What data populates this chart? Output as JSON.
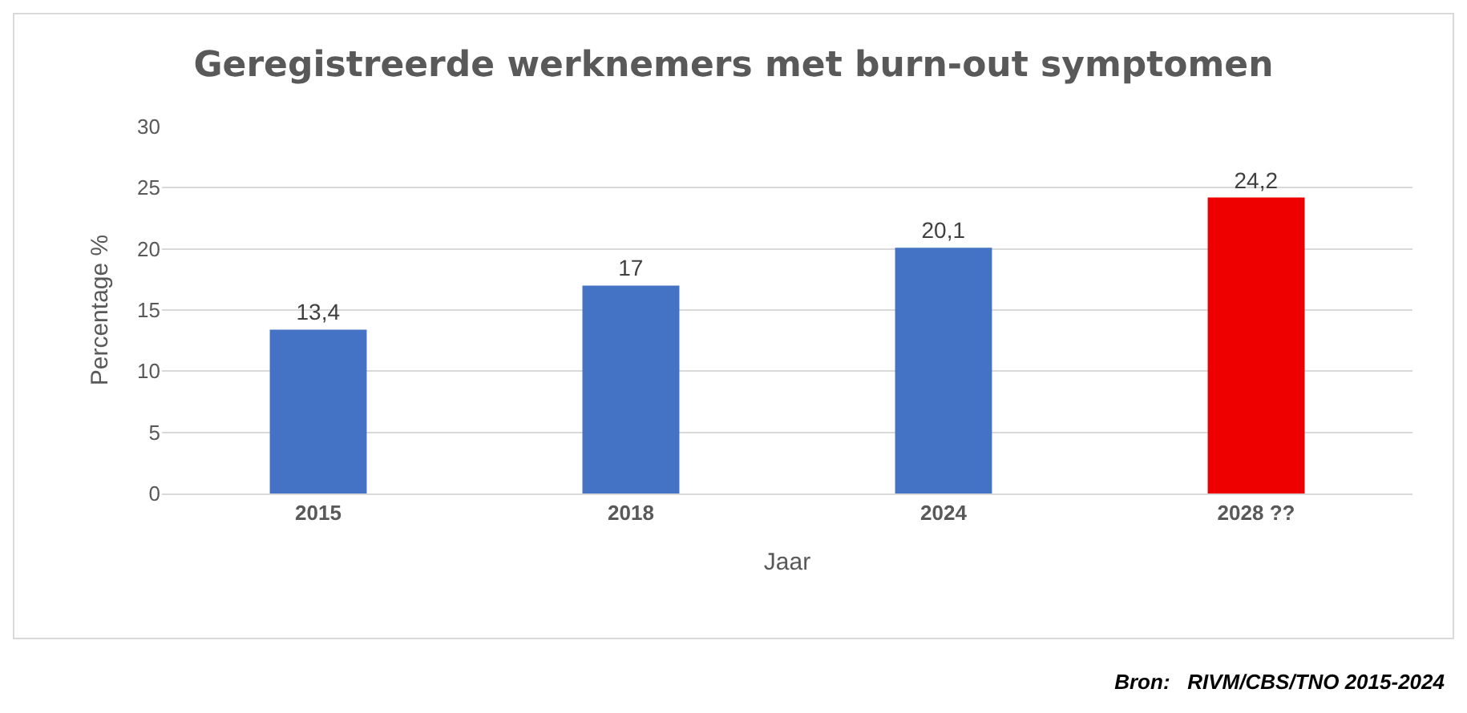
{
  "chart_data": {
    "type": "bar",
    "title": "Geregistreerde werknemers met burn-out symptomen",
    "xlabel": "Jaar",
    "ylabel": "Percentage %",
    "categories": [
      "2015",
      "2018",
      "2024",
      "2028 ??"
    ],
    "values": [
      13.4,
      17,
      20.1,
      24.2
    ],
    "colors": [
      "#4472c4",
      "#4472c4",
      "#4472c4",
      "#ee0000"
    ],
    "value_labels": [
      "13,4",
      "17",
      "20,1",
      "24,2"
    ],
    "ylim": [
      0,
      30
    ],
    "yticks": [
      0,
      5,
      10,
      15,
      20,
      25,
      30
    ],
    "grid": "y",
    "annotations": [
      "Bron:   RIVM/CBS/TNO 2015-2024"
    ]
  }
}
